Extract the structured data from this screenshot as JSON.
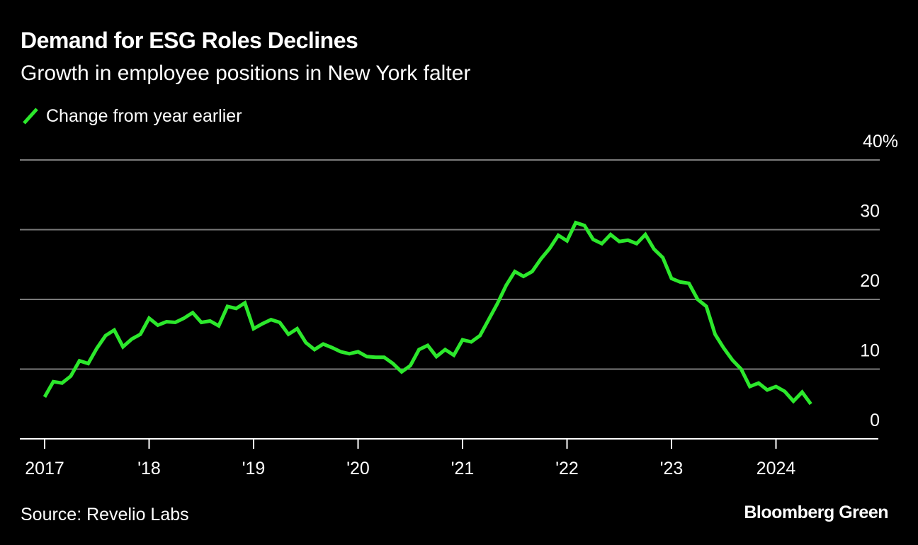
{
  "title": "Demand for ESG Roles Declines",
  "subtitle": "Growth in employee positions in New York falter",
  "legend": {
    "label": "Change from year earlier",
    "color": "#2ce82c"
  },
  "source": "Source: Revelio Labs",
  "brand": "Bloomberg Green",
  "colors": {
    "background": "#000000",
    "gridline": "#7a7a7a",
    "text": "#ffffff",
    "series": "#2ce82c"
  },
  "chart_data": {
    "type": "line",
    "title": "Demand for ESG Roles Declines",
    "subtitle": "Growth in employee positions in New York falter",
    "xlabel": "",
    "ylabel": "",
    "ylim": [
      0,
      40
    ],
    "xlim": [
      "2016-10",
      "2024-12"
    ],
    "yticks": [
      {
        "value": 0,
        "label": "0"
      },
      {
        "value": 10,
        "label": "10"
      },
      {
        "value": 20,
        "label": "20"
      },
      {
        "value": 30,
        "label": "30"
      },
      {
        "value": 40,
        "label": "40%"
      }
    ],
    "xticks": [
      {
        "value": "2017-01",
        "label": "2017"
      },
      {
        "value": "2018-01",
        "label": "'18"
      },
      {
        "value": "2019-01",
        "label": "'19"
      },
      {
        "value": "2020-01",
        "label": "'20"
      },
      {
        "value": "2021-01",
        "label": "'21"
      },
      {
        "value": "2022-01",
        "label": "'22"
      },
      {
        "value": "2023-01",
        "label": "'23"
      },
      {
        "value": "2024-01",
        "label": "2024"
      }
    ],
    "grid": true,
    "legend_position": "top-left",
    "series": [
      {
        "name": "Change from year earlier",
        "x": [
          "2017-01",
          "2017-02",
          "2017-03",
          "2017-04",
          "2017-05",
          "2017-06",
          "2017-07",
          "2017-08",
          "2017-09",
          "2017-10",
          "2017-11",
          "2017-12",
          "2018-01",
          "2018-02",
          "2018-03",
          "2018-04",
          "2018-05",
          "2018-06",
          "2018-07",
          "2018-08",
          "2018-09",
          "2018-10",
          "2018-11",
          "2018-12",
          "2019-01",
          "2019-02",
          "2019-03",
          "2019-04",
          "2019-05",
          "2019-06",
          "2019-07",
          "2019-08",
          "2019-09",
          "2019-10",
          "2019-11",
          "2019-12",
          "2020-01",
          "2020-02",
          "2020-03",
          "2020-04",
          "2020-05",
          "2020-06",
          "2020-07",
          "2020-08",
          "2020-09",
          "2020-10",
          "2020-11",
          "2020-12",
          "2021-01",
          "2021-02",
          "2021-03",
          "2021-04",
          "2021-05",
          "2021-06",
          "2021-07",
          "2021-08",
          "2021-09",
          "2021-10",
          "2021-11",
          "2021-12",
          "2022-01",
          "2022-02",
          "2022-03",
          "2022-04",
          "2022-05",
          "2022-06",
          "2022-07",
          "2022-08",
          "2022-09",
          "2022-10",
          "2022-11",
          "2022-12",
          "2023-01",
          "2023-02",
          "2023-03",
          "2023-04",
          "2023-05",
          "2023-06",
          "2023-07",
          "2023-08",
          "2023-09",
          "2023-10",
          "2023-11",
          "2023-12",
          "2024-01",
          "2024-02",
          "2024-03",
          "2024-04",
          "2024-05"
        ],
        "values": [
          6.0,
          8.2,
          8.0,
          9.0,
          11.2,
          10.8,
          13.0,
          14.8,
          15.6,
          13.2,
          14.3,
          15.0,
          17.3,
          16.3,
          16.8,
          16.7,
          17.3,
          18.1,
          16.7,
          16.9,
          16.2,
          19.0,
          18.7,
          19.5,
          15.8,
          16.5,
          17.1,
          16.7,
          15.0,
          15.8,
          13.8,
          12.8,
          13.6,
          13.1,
          12.5,
          12.2,
          12.5,
          11.8,
          11.7,
          11.7,
          10.8,
          9.6,
          10.5,
          12.8,
          13.4,
          11.8,
          12.8,
          12.0,
          14.2,
          13.9,
          14.8,
          17.1,
          19.4,
          22.0,
          24.0,
          23.3,
          24.0,
          25.8,
          27.3,
          29.2,
          28.4,
          31.0,
          30.6,
          28.6,
          28.0,
          29.3,
          28.3,
          28.5,
          28.0,
          29.3,
          27.2,
          26.0,
          23.0,
          22.5,
          22.3,
          20.0,
          19.0,
          15.0,
          13.0,
          11.3,
          10.0,
          7.5,
          8.0,
          7.0,
          7.5,
          6.8,
          5.4,
          6.7,
          5.0
        ]
      }
    ]
  }
}
